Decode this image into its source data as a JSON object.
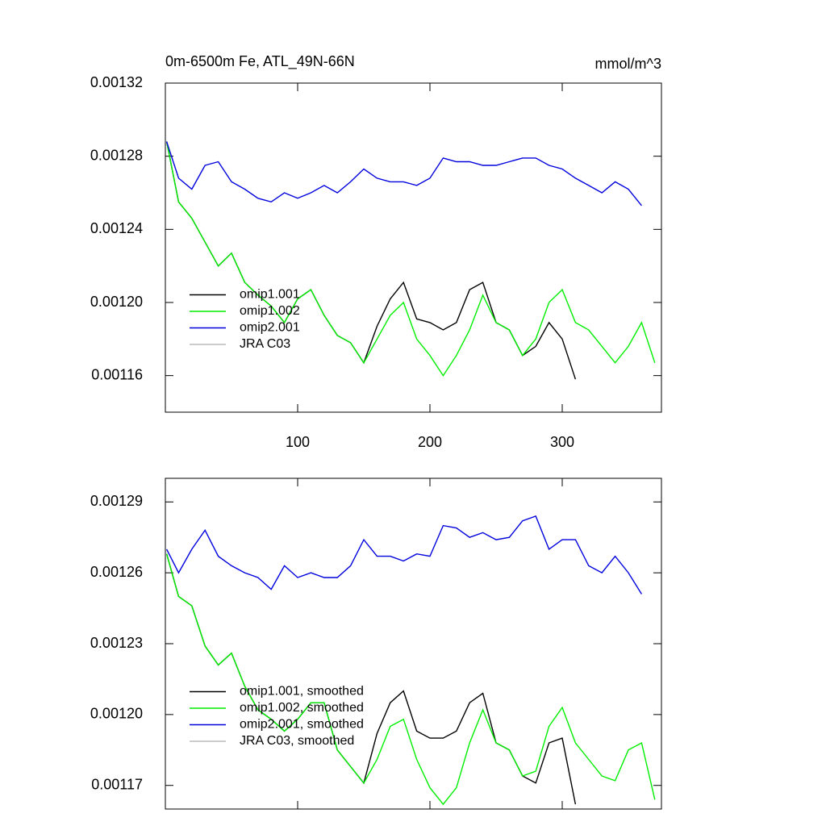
{
  "chart_data": [
    {
      "type": "line",
      "title": "0m-6500m Fe, ATL_49N-66N",
      "units": "mmol/m^3",
      "x": [
        1,
        10,
        20,
        30,
        40,
        50,
        60,
        70,
        80,
        90,
        100,
        110,
        120,
        130,
        140,
        150,
        160,
        170,
        180,
        190,
        200,
        210,
        220,
        230,
        240,
        250,
        260,
        270,
        280,
        290,
        300,
        310,
        320,
        330,
        340,
        350,
        360,
        370
      ],
      "xlim": [
        0,
        375
      ],
      "xticks": [
        100,
        200,
        300
      ],
      "xtick_labels": true,
      "ylim": [
        0.00114,
        0.00132
      ],
      "yticks": [
        0.00132,
        0.00128,
        0.00124,
        {
          "value": 0.0012,
          "label": "0.00120"
        },
        0.00116
      ],
      "legend": "lower left",
      "series": [
        {
          "name": "omip1.001",
          "color": "#000000",
          "values": [
            0.001288,
            0.001255,
            0.001246,
            0.001233,
            0.00122,
            0.001227,
            0.001211,
            0.001204,
            0.001198,
            0.001189,
            0.001202,
            0.001207,
            0.001193,
            0.001182,
            0.001178,
            0.001167,
            0.001187,
            0.001202,
            0.001211,
            0.001191,
            0.001189,
            0.001185,
            0.001189,
            0.001207,
            0.001211,
            0.001189,
            0.001185,
            0.001171,
            0.001176,
            0.001189,
            0.00118,
            0.001158,
            null,
            null,
            null,
            null,
            null,
            null
          ]
        },
        {
          "name": "omip1.002",
          "color": "#00ee00",
          "values": [
            0.001288,
            0.001255,
            0.001246,
            0.001233,
            0.00122,
            0.001227,
            0.001211,
            0.001204,
            0.001198,
            0.001189,
            0.001202,
            0.001207,
            0.001193,
            0.001182,
            0.001178,
            0.001167,
            0.00118,
            0.001193,
            0.0012,
            0.00118,
            0.001171,
            0.00116,
            0.001171,
            0.001185,
            0.001204,
            0.001189,
            0.001185,
            0.001171,
            0.00118,
            0.0012,
            0.001207,
            0.001189,
            0.001185,
            0.001176,
            0.001167,
            0.001176,
            0.001189,
            0.001167
          ]
        },
        {
          "name": "omip2.001",
          "color": "#0000dd",
          "values": [
            0.001288,
            0.001268,
            0.001262,
            0.001275,
            0.001277,
            0.001266,
            0.001262,
            0.001257,
            0.001255,
            0.00126,
            0.001257,
            0.00126,
            0.001264,
            0.00126,
            0.001266,
            0.001273,
            0.001268,
            0.001266,
            0.001266,
            0.001264,
            0.001268,
            0.001279,
            0.001277,
            0.001277,
            0.001275,
            0.001275,
            0.001277,
            0.001279,
            0.001279,
            0.001275,
            0.001273,
            0.001268,
            0.001264,
            0.00126,
            0.001266,
            0.001262,
            0.001253,
            null
          ]
        },
        {
          "name": "JRA C03",
          "color": "#bbbbbb",
          "values": [
            null,
            null,
            null,
            null,
            null,
            null,
            null,
            null,
            null,
            null,
            null,
            null,
            null,
            null,
            null,
            null,
            null,
            null,
            null,
            null,
            null,
            null,
            null,
            null,
            null,
            null,
            null,
            null,
            null,
            null,
            null,
            null,
            null,
            null,
            null,
            null,
            null,
            null
          ]
        }
      ]
    },
    {
      "type": "line",
      "x": [
        1,
        10,
        20,
        30,
        40,
        50,
        60,
        70,
        80,
        90,
        100,
        110,
        120,
        130,
        140,
        150,
        160,
        170,
        180,
        190,
        200,
        210,
        220,
        230,
        240,
        250,
        260,
        270,
        280,
        290,
        300,
        310,
        320,
        330,
        340,
        350,
        360,
        370
      ],
      "xlim": [
        0,
        375
      ],
      "xticks": [
        100,
        200,
        300
      ],
      "xtick_labels": false,
      "ylim": [
        0.00116,
        0.0013
      ],
      "yticks": [
        0.00129,
        0.00126,
        0.00123,
        {
          "value": 0.0012,
          "label": "0.00120"
        },
        0.00117
      ],
      "legend": "lower left",
      "series": [
        {
          "name": "omip1.001, smoothed",
          "color": "#000000",
          "values": [
            0.001268,
            0.00125,
            0.001246,
            0.001229,
            0.001221,
            0.001226,
            0.001212,
            0.001202,
            0.001198,
            0.001193,
            0.001198,
            0.001205,
            0.001205,
            0.001185,
            0.001178,
            0.001171,
            0.001192,
            0.001205,
            0.00121,
            0.001193,
            0.00119,
            0.00119,
            0.001193,
            0.001205,
            0.001209,
            0.001188,
            0.001185,
            0.001174,
            0.001171,
            0.001188,
            0.00119,
            0.001162,
            null,
            null,
            null,
            null,
            null,
            null
          ]
        },
        {
          "name": "omip1.002, smoothed",
          "color": "#00ee00",
          "values": [
            0.001268,
            0.00125,
            0.001246,
            0.001229,
            0.001221,
            0.001226,
            0.001212,
            0.001202,
            0.001198,
            0.001193,
            0.001198,
            0.001205,
            0.001205,
            0.001185,
            0.001178,
            0.001171,
            0.001181,
            0.001195,
            0.001198,
            0.001181,
            0.001169,
            0.001162,
            0.001169,
            0.001188,
            0.001202,
            0.001188,
            0.001185,
            0.001174,
            0.001176,
            0.001195,
            0.001203,
            0.001188,
            0.001181,
            0.001174,
            0.001172,
            0.001185,
            0.001188,
            0.001164
          ]
        },
        {
          "name": "omip2.001, smoothed",
          "color": "#0000dd",
          "values": [
            0.00127,
            0.00126,
            0.00127,
            0.001278,
            0.001267,
            0.001263,
            0.00126,
            0.001258,
            0.001253,
            0.001263,
            0.001258,
            0.00126,
            0.001258,
            0.001258,
            0.001263,
            0.001274,
            0.001267,
            0.001267,
            0.001265,
            0.001268,
            0.001267,
            0.00128,
            0.001279,
            0.001275,
            0.001277,
            0.001274,
            0.001275,
            0.001282,
            0.001284,
            0.00127,
            0.001274,
            0.001274,
            0.001263,
            0.00126,
            0.001267,
            0.00126,
            0.001251,
            null
          ]
        },
        {
          "name": "JRA C03, smoothed",
          "color": "#bbbbbb",
          "values": [
            null,
            null,
            null,
            null,
            null,
            null,
            null,
            null,
            null,
            null,
            null,
            null,
            null,
            null,
            null,
            null,
            null,
            null,
            null,
            null,
            null,
            null,
            null,
            null,
            null,
            null,
            null,
            null,
            null,
            null,
            null,
            null,
            null,
            null,
            null,
            null,
            null,
            null
          ]
        }
      ]
    }
  ]
}
